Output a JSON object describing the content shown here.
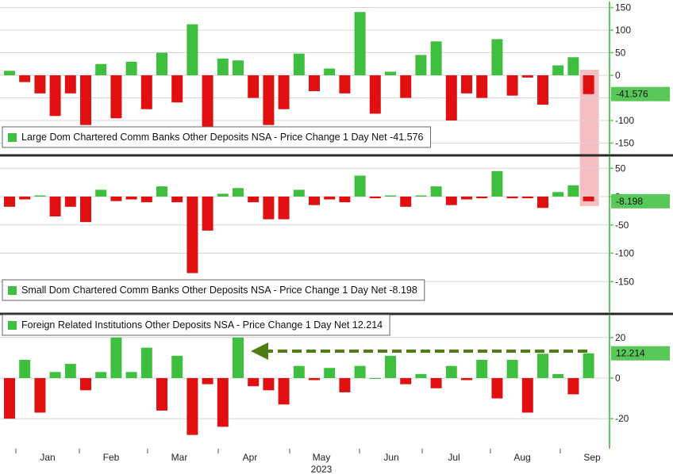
{
  "colors": {
    "positive": "#3fbf3f",
    "negative": "#e01010",
    "axis": "#5ec85e",
    "grid": "#d6d6d6",
    "separator": "#2a2a2a",
    "highlight": "#f1a9ae",
    "arrow": "#4d7f10",
    "badge": "#58c858"
  },
  "chart_data": [
    {
      "type": "bar",
      "legend": "Large Dom Chartered Comm Banks Other Deposits NSA - Price Change 1 Day Net -41.576",
      "last_value_label": "-41.576",
      "y_ticks": [
        "150",
        "100",
        "50",
        "0",
        "-50",
        "-100",
        "-150"
      ],
      "ylim": [
        -175,
        160
      ],
      "values": [
        10,
        -15,
        -40,
        -90,
        -40,
        -110,
        25,
        -95,
        30,
        -75,
        50,
        -60,
        113,
        -115,
        37,
        33,
        -50,
        -110,
        -75,
        48,
        -35,
        15,
        -40,
        140,
        -85,
        8,
        -50,
        45,
        75,
        -100,
        -40,
        -50,
        80,
        -45,
        -5,
        -65,
        22,
        40,
        -41.576
      ]
    },
    {
      "type": "bar",
      "legend": "Small Dom Chartered Comm Banks Other Deposits NSA - Price Change 1 Day Net -8.198",
      "last_value_label": "-8.198",
      "y_ticks": [
        "50",
        "0",
        "-50",
        "-100",
        "-150"
      ],
      "ylim": [
        -175,
        65
      ],
      "values": [
        -18,
        -5,
        2,
        -35,
        -18,
        -45,
        12,
        -8,
        -5,
        -10,
        18,
        -10,
        -135,
        -60,
        5,
        15,
        -10,
        -40,
        -40,
        12,
        -15,
        -5,
        -10,
        37,
        -3,
        2,
        -18,
        2,
        18,
        -15,
        -5,
        -3,
        45,
        -3,
        -3,
        -20,
        8,
        20,
        -8.198
      ]
    },
    {
      "type": "bar",
      "legend": "Foreign Related Institutions Other Deposits NSA - Price Change 1 Day Net 12.214",
      "last_value_label": "12.214",
      "y_ticks": [
        "20",
        "0",
        "-20"
      ],
      "ylim": [
        -33,
        30
      ],
      "values": [
        -20,
        9,
        -17,
        3,
        7,
        -6,
        3,
        20,
        3,
        15,
        -16,
        11,
        -28,
        -3,
        -24,
        20,
        -4,
        -6,
        -13,
        6,
        -1,
        5,
        -7,
        6,
        0,
        11,
        -3,
        2,
        -5,
        6,
        -1,
        9,
        -10,
        9,
        -17,
        12,
        2,
        -8,
        12.214
      ]
    }
  ],
  "x_axis": {
    "months": [
      "Jan",
      "Feb",
      "Mar",
      "Apr",
      "May",
      "Jun",
      "Jul",
      "Aug",
      "Sep"
    ],
    "year": "2023"
  }
}
